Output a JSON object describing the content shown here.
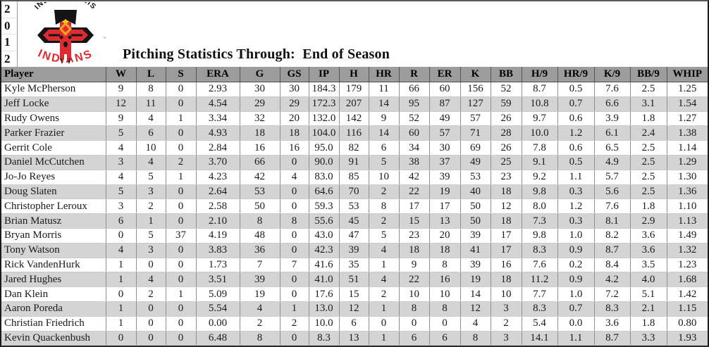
{
  "year": {
    "digits": [
      "2",
      "0",
      "1",
      "2"
    ]
  },
  "logo": {
    "arc_top_text": "INDIANAPOLIS",
    "arc_bottom_text": "INDIANS",
    "trademark": "™",
    "colors": {
      "red": "#df2b2f",
      "black": "#141414",
      "yellow": "#f6a21c",
      "gold": "#ffd200"
    }
  },
  "title": "Pitching Statistics Through:  End of Season",
  "table": {
    "columns": [
      "Player",
      "W",
      "L",
      "S",
      "ERA",
      "G",
      "GS",
      "IP",
      "H",
      "HR",
      "R",
      "ER",
      "K",
      "BB",
      "H/9",
      "HR/9",
      "K/9",
      "BB/9",
      "WHIP"
    ],
    "rows": [
      [
        "Kyle McPherson",
        "9",
        "8",
        "0",
        "2.93",
        "30",
        "30",
        "184.3",
        "179",
        "11",
        "66",
        "60",
        "156",
        "52",
        "8.7",
        "0.5",
        "7.6",
        "2.5",
        "1.25"
      ],
      [
        "Jeff Locke",
        "12",
        "11",
        "0",
        "4.54",
        "29",
        "29",
        "172.3",
        "207",
        "14",
        "95",
        "87",
        "127",
        "59",
        "10.8",
        "0.7",
        "6.6",
        "3.1",
        "1.54"
      ],
      [
        "Rudy Owens",
        "9",
        "4",
        "1",
        "3.34",
        "32",
        "20",
        "132.0",
        "142",
        "9",
        "52",
        "49",
        "57",
        "26",
        "9.7",
        "0.6",
        "3.9",
        "1.8",
        "1.27"
      ],
      [
        "Parker Frazier",
        "5",
        "6",
        "0",
        "4.93",
        "18",
        "18",
        "104.0",
        "116",
        "14",
        "60",
        "57",
        "71",
        "28",
        "10.0",
        "1.2",
        "6.1",
        "2.4",
        "1.38"
      ],
      [
        "Gerrit Cole",
        "4",
        "10",
        "0",
        "2.84",
        "16",
        "16",
        "95.0",
        "82",
        "6",
        "34",
        "30",
        "69",
        "26",
        "7.8",
        "0.6",
        "6.5",
        "2.5",
        "1.14"
      ],
      [
        "Daniel McCutchen",
        "3",
        "4",
        "2",
        "3.70",
        "66",
        "0",
        "90.0",
        "91",
        "5",
        "38",
        "37",
        "49",
        "25",
        "9.1",
        "0.5",
        "4.9",
        "2.5",
        "1.29"
      ],
      [
        "Jo-Jo Reyes",
        "4",
        "5",
        "1",
        "4.23",
        "42",
        "4",
        "83.0",
        "85",
        "10",
        "42",
        "39",
        "53",
        "23",
        "9.2",
        "1.1",
        "5.7",
        "2.5",
        "1.30"
      ],
      [
        "Doug Slaten",
        "5",
        "3",
        "0",
        "2.64",
        "53",
        "0",
        "64.6",
        "70",
        "2",
        "22",
        "19",
        "40",
        "18",
        "9.8",
        "0.3",
        "5.6",
        "2.5",
        "1.36"
      ],
      [
        "Christopher Leroux",
        "3",
        "2",
        "0",
        "2.58",
        "50",
        "0",
        "59.3",
        "53",
        "8",
        "17",
        "17",
        "50",
        "12",
        "8.0",
        "1.2",
        "7.6",
        "1.8",
        "1.10"
      ],
      [
        "Brian Matusz",
        "6",
        "1",
        "0",
        "2.10",
        "8",
        "8",
        "55.6",
        "45",
        "2",
        "15",
        "13",
        "50",
        "18",
        "7.3",
        "0.3",
        "8.1",
        "2.9",
        "1.13"
      ],
      [
        "Bryan Morris",
        "0",
        "5",
        "37",
        "4.19",
        "48",
        "0",
        "43.0",
        "47",
        "5",
        "23",
        "20",
        "39",
        "17",
        "9.8",
        "1.0",
        "8.2",
        "3.6",
        "1.49"
      ],
      [
        "Tony Watson",
        "4",
        "3",
        "0",
        "3.83",
        "36",
        "0",
        "42.3",
        "39",
        "4",
        "18",
        "18",
        "41",
        "17",
        "8.3",
        "0.9",
        "8.7",
        "3.6",
        "1.32"
      ],
      [
        "Rick VandenHurk",
        "1",
        "0",
        "0",
        "1.73",
        "7",
        "7",
        "41.6",
        "35",
        "1",
        "9",
        "8",
        "39",
        "16",
        "7.6",
        "0.2",
        "8.4",
        "3.5",
        "1.23"
      ],
      [
        "Jared Hughes",
        "1",
        "4",
        "0",
        "3.51",
        "39",
        "0",
        "41.0",
        "51",
        "4",
        "22",
        "16",
        "19",
        "18",
        "11.2",
        "0.9",
        "4.2",
        "4.0",
        "1.68"
      ],
      [
        "Dan Klein",
        "0",
        "2",
        "1",
        "5.09",
        "19",
        "0",
        "17.6",
        "15",
        "2",
        "10",
        "10",
        "14",
        "10",
        "7.7",
        "1.0",
        "7.2",
        "5.1",
        "1.42"
      ],
      [
        "Aaron Poreda",
        "1",
        "0",
        "0",
        "5.54",
        "4",
        "1",
        "13.0",
        "12",
        "1",
        "8",
        "8",
        "12",
        "3",
        "8.3",
        "0.7",
        "8.3",
        "2.1",
        "1.15"
      ],
      [
        "Christian Friedrich",
        "1",
        "0",
        "0",
        "0.00",
        "2",
        "2",
        "10.0",
        "6",
        "0",
        "0",
        "0",
        "4",
        "2",
        "5.4",
        "0.0",
        "3.6",
        "1.8",
        "0.80"
      ],
      [
        "Kevin Quackenbush",
        "0",
        "0",
        "0",
        "6.48",
        "8",
        "0",
        "8.3",
        "13",
        "1",
        "6",
        "6",
        "8",
        "3",
        "14.1",
        "1.1",
        "8.7",
        "3.3",
        "1.93"
      ]
    ]
  },
  "colors": {
    "header_bg": "#9c9c9c",
    "row_bg": "#ffffff",
    "row_alt_bg": "#d4d4d4",
    "grid_line": "#8f8f8f"
  }
}
